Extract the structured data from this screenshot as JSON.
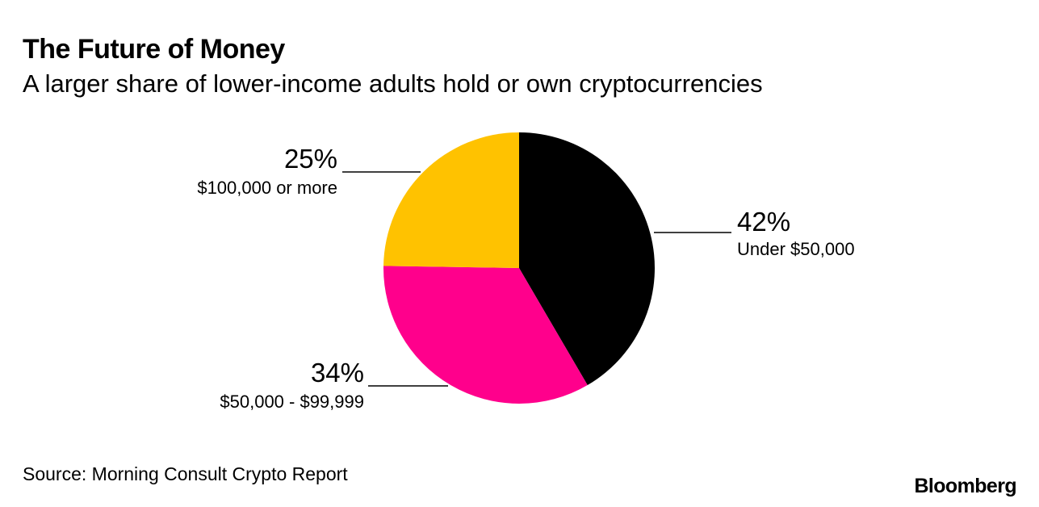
{
  "header": {
    "title": "The Future of Money",
    "subtitle": "A larger share of lower-income adults hold or own cryptocurrencies"
  },
  "footer": {
    "source": "Source: Morning Consult Crypto Report",
    "brand": "Bloomberg"
  },
  "chart_data": {
    "type": "pie",
    "title": "The Future of Money",
    "subtitle": "A larger share of lower-income adults hold or own cryptocurrencies",
    "start_angle": "12 o'clock",
    "direction": "clockwise",
    "slices": [
      {
        "label": "Under $50,000",
        "value": 42,
        "value_label": "42%",
        "color": "#000000"
      },
      {
        "label": "$50,000 - $99,999",
        "value": 34,
        "value_label": "34%",
        "color": "#ff008c"
      },
      {
        "label": "$100,000 or more",
        "value": 25,
        "value_label": "25%",
        "color": "#ffc200"
      }
    ]
  }
}
